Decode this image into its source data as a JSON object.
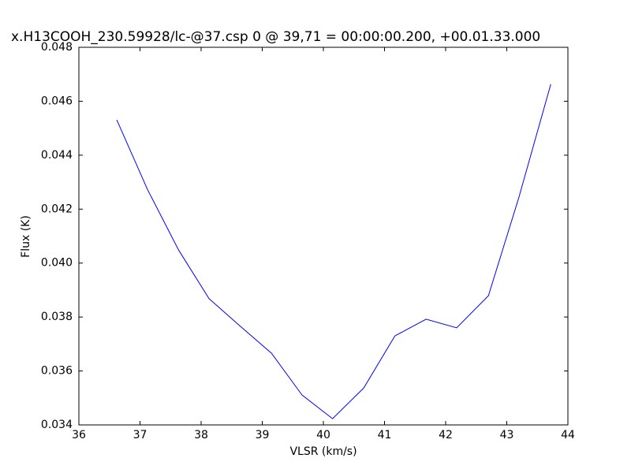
{
  "chart_data": {
    "type": "line",
    "title": "x.H13COOH_230.59928/lc-@37.csp 0 @ 39,71 = 00:00:00.200, +00.01.33.000",
    "x_label": "VLSR (km/s)",
    "y_label": "Flux (K)",
    "x": [
      36.62,
      37.12,
      37.63,
      38.13,
      38.63,
      39.15,
      39.65,
      40.15,
      40.66,
      41.17,
      41.68,
      42.18,
      42.7,
      43.2,
      43.72
    ],
    "values": [
      0.04531,
      0.04274,
      0.04049,
      0.03868,
      0.03768,
      0.03666,
      0.03511,
      0.03423,
      0.03537,
      0.0373,
      0.03792,
      0.0376,
      0.03879,
      0.04245,
      0.04663
    ],
    "color": "#0000ff",
    "xlim": [
      36,
      44
    ],
    "ylim": [
      0.034,
      0.048
    ],
    "xticks": [
      36,
      37,
      38,
      39,
      40,
      41,
      42,
      43,
      44
    ],
    "yticks": [
      0.034,
      0.036,
      0.038,
      {
        "value": 0.04,
        "label": "0.040"
      },
      0.042,
      0.044,
      0.046,
      0.048
    ],
    "grid": false
  }
}
